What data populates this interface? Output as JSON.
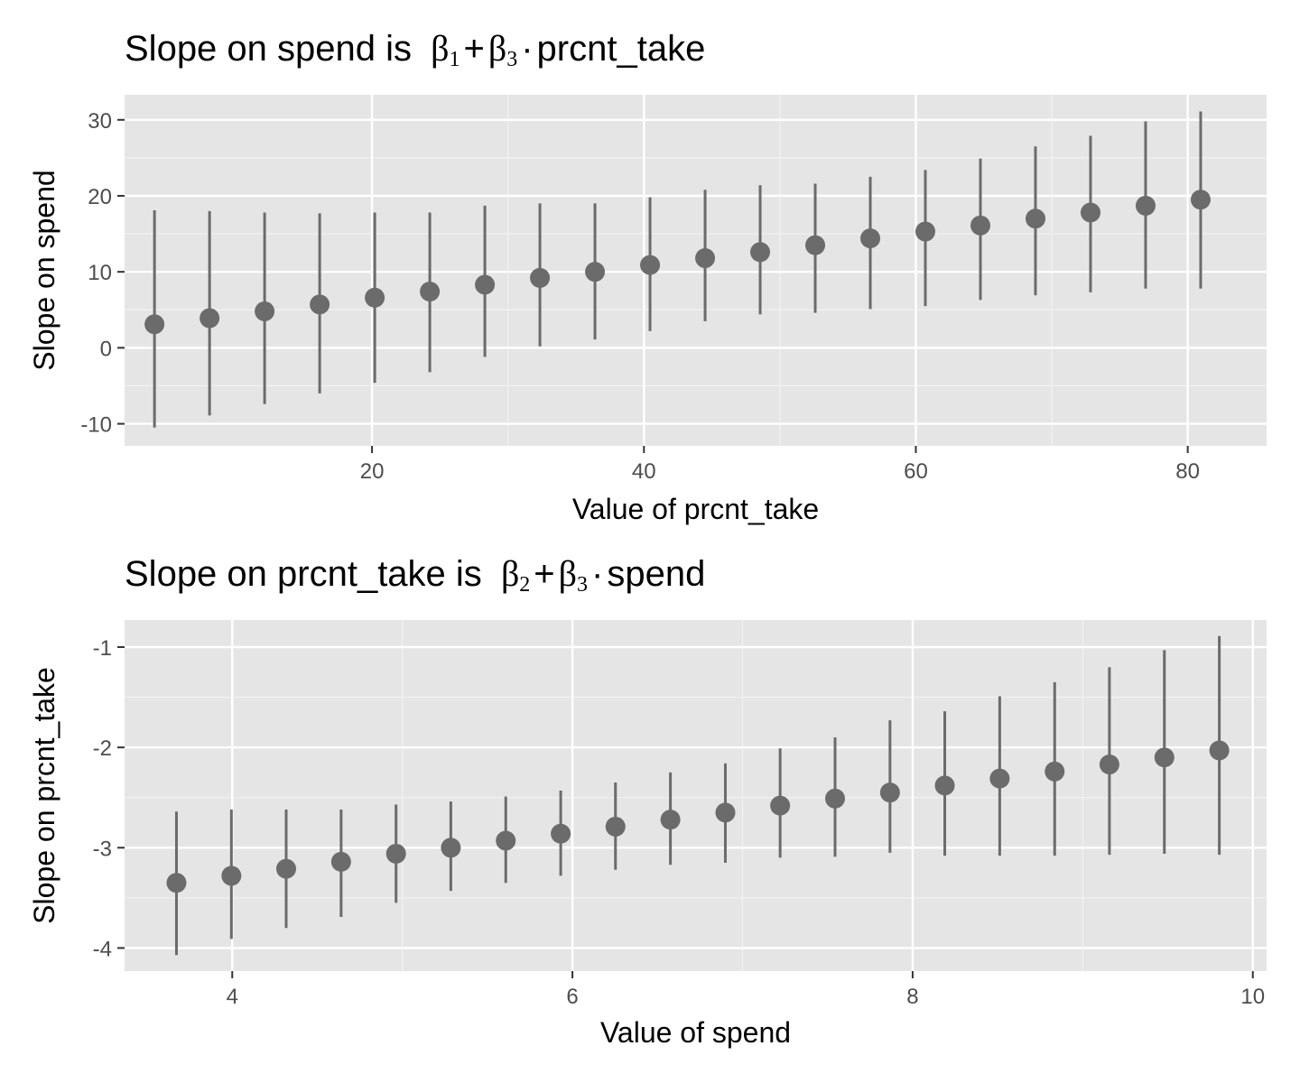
{
  "chart_data": [
    {
      "type": "pointrange",
      "title_prefix": "Slope on spend is",
      "title_math": {
        "a": "β",
        "a_sub": "1",
        "op1": "+",
        "b": "β",
        "b_sub": "3",
        "op2": "·",
        "var": "prcnt_take"
      },
      "xlabel": "Value of prcnt_take",
      "ylabel": "Slope on spend",
      "xlim": [
        1.8,
        85.8
      ],
      "ylim": [
        -12.9,
        33.3
      ],
      "xticks": [
        20,
        40,
        60,
        80
      ],
      "xtick_labels": [
        "20",
        "40",
        "60",
        "80"
      ],
      "yticks": [
        -10,
        0,
        10,
        20,
        30
      ],
      "ytick_labels": [
        "-10",
        "0",
        "10",
        "20",
        "30"
      ],
      "grid": true,
      "points": [
        {
          "x": 4.0,
          "y": 3.1,
          "lo": -10.5,
          "hi": 18.1
        },
        {
          "x": 8.05,
          "y": 3.9,
          "lo": -8.9,
          "hi": 18.0
        },
        {
          "x": 12.1,
          "y": 4.8,
          "lo": -7.4,
          "hi": 17.8
        },
        {
          "x": 16.15,
          "y": 5.7,
          "lo": -6.0,
          "hi": 17.7
        },
        {
          "x": 20.2,
          "y": 6.6,
          "lo": -4.6,
          "hi": 17.8
        },
        {
          "x": 24.25,
          "y": 7.4,
          "lo": -3.2,
          "hi": 17.8
        },
        {
          "x": 28.3,
          "y": 8.3,
          "lo": -1.2,
          "hi": 18.7
        },
        {
          "x": 32.35,
          "y": 9.2,
          "lo": 0.2,
          "hi": 19.0
        },
        {
          "x": 36.4,
          "y": 10.0,
          "lo": 1.1,
          "hi": 19.0
        },
        {
          "x": 40.45,
          "y": 10.9,
          "lo": 2.2,
          "hi": 19.8
        },
        {
          "x": 44.5,
          "y": 11.8,
          "lo": 3.5,
          "hi": 20.8
        },
        {
          "x": 48.55,
          "y": 12.6,
          "lo": 4.4,
          "hi": 21.4
        },
        {
          "x": 52.6,
          "y": 13.5,
          "lo": 4.6,
          "hi": 21.6
        },
        {
          "x": 56.65,
          "y": 14.4,
          "lo": 5.1,
          "hi": 22.5
        },
        {
          "x": 60.7,
          "y": 15.3,
          "lo": 5.5,
          "hi": 23.4
        },
        {
          "x": 64.75,
          "y": 16.1,
          "lo": 6.3,
          "hi": 24.9
        },
        {
          "x": 68.8,
          "y": 17.0,
          "lo": 6.9,
          "hi": 26.5
        },
        {
          "x": 72.85,
          "y": 17.8,
          "lo": 7.3,
          "hi": 27.9
        },
        {
          "x": 76.9,
          "y": 18.7,
          "lo": 7.8,
          "hi": 29.8
        },
        {
          "x": 80.95,
          "y": 19.5,
          "lo": 7.8,
          "hi": 31.1
        }
      ]
    },
    {
      "type": "pointrange",
      "title_prefix": "Slope on prcnt_take is",
      "title_math": {
        "a": "β",
        "a_sub": "2",
        "op1": "+",
        "b": "β",
        "b_sub": "3",
        "op2": "·",
        "var": "spend"
      },
      "xlabel": "Value of spend",
      "ylabel": "Slope on prcnt_take",
      "xlim": [
        3.367,
        10.081
      ],
      "ylim": [
        -4.23,
        -0.73
      ],
      "xticks": [
        4,
        6,
        8,
        10
      ],
      "xtick_labels": [
        "4",
        "6",
        "8",
        "10"
      ],
      "yticks": [
        -4,
        -3,
        -2,
        -1
      ],
      "ytick_labels": [
        "-4",
        "-3",
        "-2",
        "-1"
      ],
      "grid": true,
      "points": [
        {
          "x": 3.672,
          "y": -3.35,
          "lo": -4.07,
          "hi": -2.64
        },
        {
          "x": 3.995,
          "y": -3.28,
          "lo": -3.91,
          "hi": -2.62
        },
        {
          "x": 4.317,
          "y": -3.21,
          "lo": -3.8,
          "hi": -2.62
        },
        {
          "x": 4.64,
          "y": -3.14,
          "lo": -3.69,
          "hi": -2.62
        },
        {
          "x": 4.963,
          "y": -3.06,
          "lo": -3.55,
          "hi": -2.57
        },
        {
          "x": 5.285,
          "y": -3.0,
          "lo": -3.43,
          "hi": -2.54
        },
        {
          "x": 5.608,
          "y": -2.93,
          "lo": -3.35,
          "hi": -2.49
        },
        {
          "x": 5.931,
          "y": -2.86,
          "lo": -3.28,
          "hi": -2.43
        },
        {
          "x": 6.253,
          "y": -2.79,
          "lo": -3.22,
          "hi": -2.35
        },
        {
          "x": 6.576,
          "y": -2.72,
          "lo": -3.17,
          "hi": -2.25
        },
        {
          "x": 6.899,
          "y": -2.65,
          "lo": -3.15,
          "hi": -2.16
        },
        {
          "x": 7.221,
          "y": -2.58,
          "lo": -3.1,
          "hi": -2.01
        },
        {
          "x": 7.544,
          "y": -2.51,
          "lo": -3.09,
          "hi": -1.9
        },
        {
          "x": 7.867,
          "y": -2.45,
          "lo": -3.05,
          "hi": -1.73
        },
        {
          "x": 8.189,
          "y": -2.38,
          "lo": -3.08,
          "hi": -1.64
        },
        {
          "x": 8.512,
          "y": -2.31,
          "lo": -3.08,
          "hi": -1.49
        },
        {
          "x": 8.835,
          "y": -2.24,
          "lo": -3.08,
          "hi": -1.35
        },
        {
          "x": 9.157,
          "y": -2.17,
          "lo": -3.07,
          "hi": -1.2
        },
        {
          "x": 9.48,
          "y": -2.1,
          "lo": -3.06,
          "hi": -1.03
        },
        {
          "x": 9.803,
          "y": -2.03,
          "lo": -3.07,
          "hi": -0.89
        }
      ]
    }
  ]
}
